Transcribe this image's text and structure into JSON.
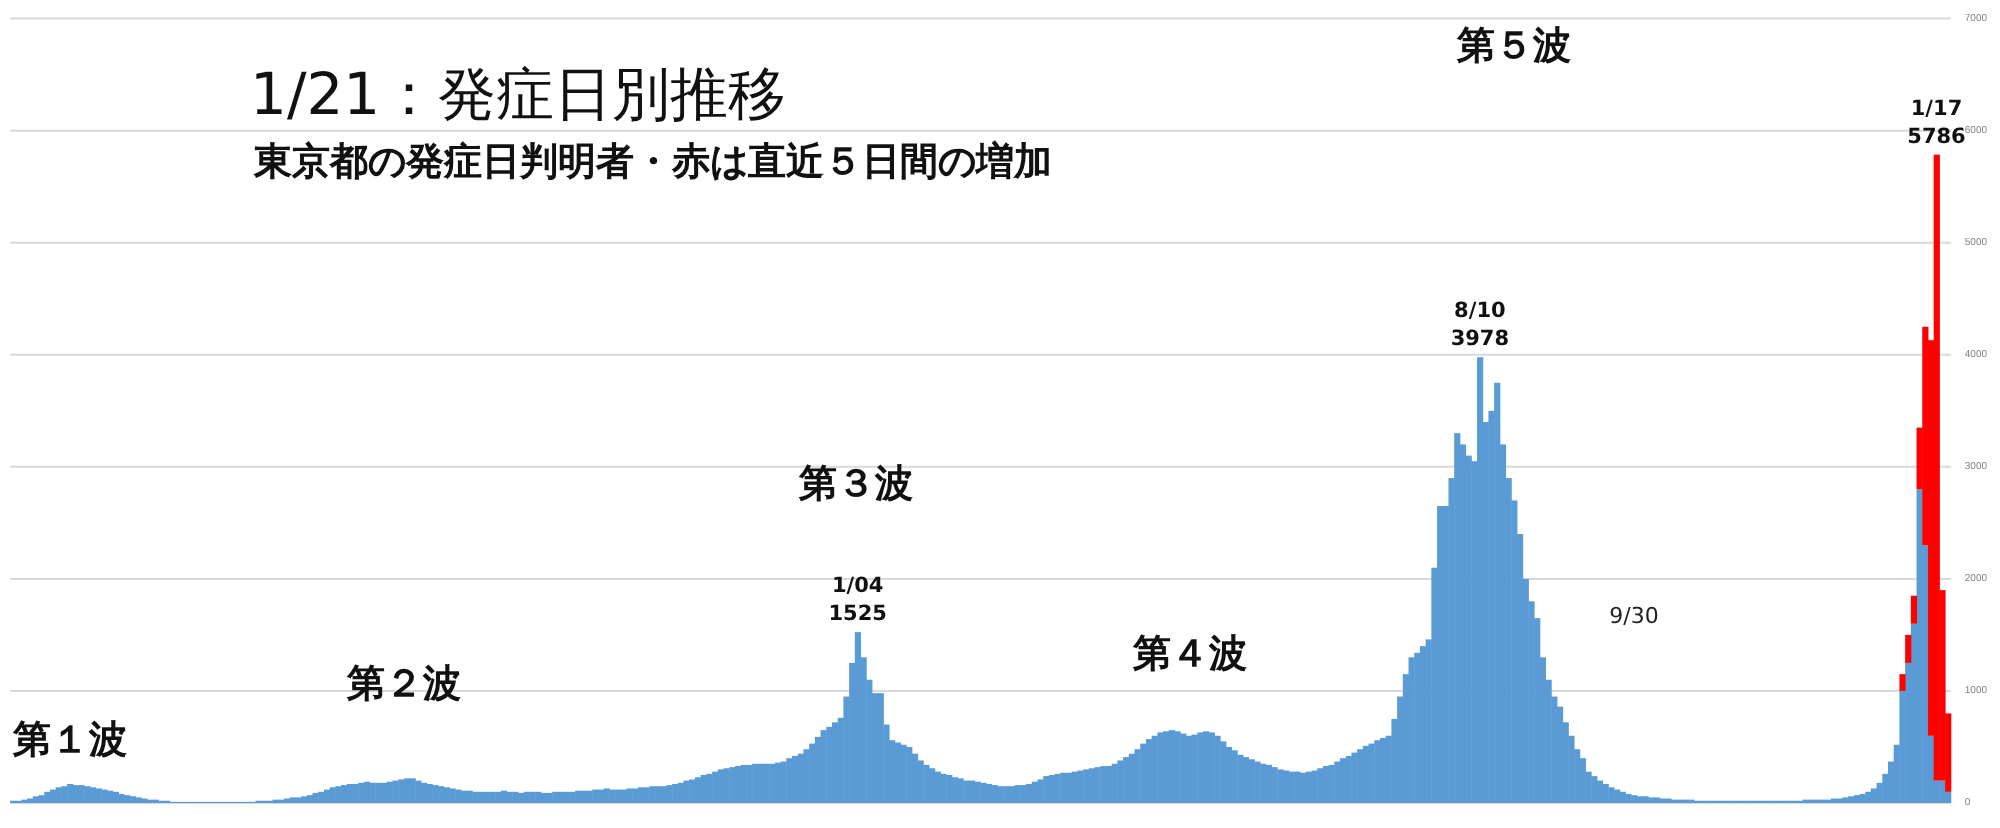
{
  "chart_data": {
    "type": "bar",
    "title": "1/21：発症日別推移",
    "subtitle": "東京都の発症日判明者・赤は直近５日間の増加",
    "categories": [
      null,
      null,
      null,
      null,
      null,
      null,
      null,
      null,
      null,
      null,
      null,
      null,
      null,
      null,
      null,
      null,
      null,
      null,
      null,
      null,
      null,
      null,
      null,
      null,
      null,
      null,
      null,
      null,
      null,
      null,
      null,
      null,
      null,
      null,
      null,
      null,
      null,
      null,
      null,
      null,
      null,
      null,
      null,
      null,
      null,
      null,
      null,
      null,
      null,
      null,
      null,
      null,
      null,
      null,
      null,
      null,
      null,
      null,
      null,
      null,
      null,
      null,
      null,
      null,
      null,
      null,
      null,
      null,
      null,
      null,
      null,
      null,
      null,
      null,
      null,
      null,
      null,
      null,
      null,
      null,
      null,
      null,
      null,
      null,
      null,
      null,
      null,
      null,
      null,
      null,
      null,
      null,
      null,
      null,
      null,
      null,
      null,
      null,
      null,
      null,
      null,
      null,
      null,
      null,
      null,
      null,
      null,
      null,
      null,
      null,
      null,
      null,
      null,
      null,
      null,
      null,
      null,
      null,
      null,
      null,
      null,
      null,
      null,
      null,
      null,
      null,
      null,
      null,
      null,
      null,
      null,
      null,
      null,
      null,
      null,
      null,
      null,
      null,
      null,
      null,
      null,
      null,
      null,
      null,
      null,
      null,
      null,
      null,
      null,
      null,
      null,
      null,
      null,
      null,
      null,
      null,
      null,
      null,
      null,
      null,
      null,
      null,
      null,
      null,
      null,
      null,
      null,
      null,
      null,
      null,
      null,
      null,
      null,
      null,
      null,
      null,
      null,
      null,
      null,
      null,
      null,
      null,
      null,
      null,
      null,
      null,
      null,
      null,
      null,
      null,
      null,
      null,
      null,
      null,
      null,
      null,
      null,
      null,
      null,
      null,
      null,
      null,
      null,
      null,
      null,
      null,
      null,
      null,
      null,
      null,
      null,
      null,
      null,
      null,
      null,
      null,
      null,
      null,
      null,
      null,
      null,
      null,
      null,
      null,
      null,
      null,
      null,
      null,
      null,
      null,
      null,
      null,
      null,
      null,
      null,
      null,
      null,
      null,
      null,
      null,
      null,
      null,
      null,
      null,
      null,
      null,
      null,
      null,
      null,
      null,
      null,
      null,
      null,
      null,
      null,
      null,
      null,
      null,
      null,
      null,
      null,
      null,
      null,
      null,
      null,
      null,
      null,
      null,
      null,
      null,
      null,
      null,
      null,
      null,
      null,
      null,
      null,
      null,
      null,
      null,
      null,
      null,
      null,
      null,
      null,
      null,
      null,
      null,
      null,
      null,
      null,
      null,
      null,
      null,
      null,
      null,
      null,
      null,
      null,
      null,
      null,
      null,
      null,
      null,
      null,
      null,
      null,
      null,
      null,
      null,
      null,
      null,
      null,
      null,
      null,
      null,
      null,
      null,
      null,
      null,
      null,
      null,
      null,
      null,
      null,
      null,
      null,
      null,
      null,
      null,
      null,
      null,
      null,
      null,
      null,
      null,
      null,
      null,
      null,
      null
    ],
    "ylim": [
      0,
      7000
    ],
    "yticks": [
      0,
      1000,
      2000,
      3000,
      4000,
      5000,
      6000,
      7000
    ],
    "grid": "y",
    "tick_labels": "y",
    "stacked": true,
    "series": [
      {
        "color": "#5b9bd5",
        "values": [
          20,
          20,
          30,
          40,
          60,
          70,
          100,
          120,
          140,
          150,
          170,
          160,
          160,
          150,
          140,
          130,
          120,
          110,
          100,
          80,
          70,
          60,
          50,
          40,
          30,
          30,
          20,
          20,
          10,
          10,
          10,
          10,
          10,
          10,
          10,
          10,
          10,
          10,
          10,
          10,
          10,
          10,
          10,
          20,
          20,
          20,
          30,
          30,
          40,
          50,
          50,
          60,
          70,
          90,
          100,
          120,
          140,
          150,
          160,
          170,
          170,
          180,
          190,
          180,
          180,
          180,
          190,
          200,
          210,
          220,
          220,
          200,
          180,
          170,
          160,
          150,
          140,
          130,
          120,
          110,
          110,
          100,
          100,
          100,
          100,
          100,
          110,
          100,
          100,
          90,
          100,
          100,
          100,
          90,
          90,
          100,
          100,
          100,
          100,
          110,
          110,
          110,
          120,
          120,
          130,
          120,
          120,
          120,
          130,
          130,
          140,
          140,
          150,
          150,
          150,
          160,
          170,
          180,
          200,
          210,
          230,
          250,
          260,
          280,
          300,
          310,
          320,
          330,
          340,
          340,
          350,
          350,
          350,
          350,
          360,
          370,
          400,
          420,
          440,
          480,
          530,
          590,
          650,
          680,
          720,
          760,
          950,
          1250,
          1525,
          1300,
          1100,
          980,
          980,
          700,
          560,
          540,
          520,
          500,
          440,
          380,
          340,
          310,
          280,
          260,
          250,
          230,
          220,
          200,
          200,
          190,
          180,
          170,
          160,
          150,
          150,
          150,
          160,
          160,
          170,
          190,
          210,
          240,
          250,
          260,
          270,
          270,
          280,
          290,
          300,
          310,
          320,
          330,
          330,
          350,
          380,
          410,
          440,
          480,
          530,
          570,
          600,
          630,
          640,
          650,
          640,
          620,
          600,
          610,
          630,
          640,
          630,
          600,
          550,
          500,
          470,
          430,
          410,
          390,
          370,
          350,
          340,
          320,
          300,
          290,
          280,
          280,
          270,
          280,
          290,
          310,
          330,
          340,
          370,
          400,
          420,
          450,
          480,
          510,
          530,
          560,
          580,
          600,
          750,
          950,
          1150,
          1300,
          1340,
          1400,
          1460,
          2100,
          2650,
          2650,
          2900,
          3300,
          3200,
          3100,
          3050,
          3978,
          3400,
          3500,
          3750,
          3200,
          2900,
          2700,
          2400,
          2000,
          1800,
          1650,
          1300,
          1100,
          950,
          860,
          720,
          600,
          480,
          400,
          280,
          240,
          200,
          170,
          140,
          120,
          100,
          80,
          70,
          60,
          60,
          50,
          50,
          40,
          40,
          30,
          30,
          30,
          30,
          20,
          20,
          20,
          20,
          20,
          20,
          20,
          20,
          20,
          20,
          20,
          20,
          20,
          20,
          20,
          20,
          20,
          20,
          20,
          30,
          30,
          30,
          30,
          30,
          40,
          40,
          50,
          60,
          70,
          80,
          100,
          130,
          180,
          260,
          370,
          520,
          1000,
          1250,
          1600,
          2800,
          2300,
          600,
          200,
          200,
          100
        ]
      },
      {
        "color": "#ff0000",
        "values": [
          null,
          null,
          null,
          null,
          null,
          null,
          null,
          null,
          null,
          null,
          null,
          null,
          null,
          null,
          null,
          null,
          null,
          null,
          null,
          null,
          null,
          null,
          null,
          null,
          null,
          null,
          null,
          null,
          null,
          null,
          null,
          null,
          null,
          null,
          null,
          null,
          null,
          null,
          null,
          null,
          null,
          null,
          null,
          null,
          null,
          null,
          null,
          null,
          null,
          null,
          null,
          null,
          null,
          null,
          null,
          null,
          null,
          null,
          null,
          null,
          null,
          null,
          null,
          null,
          null,
          null,
          null,
          null,
          null,
          null,
          null,
          null,
          null,
          null,
          null,
          null,
          null,
          null,
          null,
          null,
          null,
          null,
          null,
          null,
          null,
          null,
          null,
          null,
          null,
          null,
          null,
          null,
          null,
          null,
          null,
          null,
          null,
          null,
          null,
          null,
          null,
          null,
          null,
          null,
          null,
          null,
          null,
          null,
          null,
          null,
          null,
          null,
          null,
          null,
          null,
          null,
          null,
          null,
          null,
          null,
          null,
          null,
          null,
          null,
          null,
          null,
          null,
          null,
          null,
          null,
          null,
          null,
          null,
          null,
          null,
          null,
          null,
          null,
          null,
          null,
          null,
          null,
          null,
          null,
          null,
          null,
          null,
          null,
          null,
          null,
          null,
          null,
          null,
          null,
          null,
          null,
          null,
          null,
          null,
          null,
          null,
          null,
          null,
          null,
          null,
          null,
          null,
          null,
          null,
          null,
          null,
          null,
          null,
          null,
          null,
          null,
          null,
          null,
          null,
          null,
          null,
          null,
          null,
          null,
          null,
          null,
          null,
          null,
          null,
          null,
          null,
          null,
          null,
          null,
          null,
          null,
          null,
          null,
          null,
          null,
          null,
          null,
          null,
          null,
          null,
          null,
          null,
          null,
          null,
          null,
          null,
          null,
          null,
          null,
          null,
          null,
          null,
          null,
          null,
          null,
          null,
          null,
          null,
          null,
          null,
          null,
          null,
          null,
          null,
          null,
          null,
          null,
          null,
          null,
          null,
          null,
          null,
          null,
          null,
          null,
          null,
          null,
          null,
          null,
          null,
          null,
          null,
          null,
          null,
          null,
          null,
          null,
          null,
          null,
          null,
          null,
          null,
          null,
          null,
          null,
          null,
          null,
          null,
          null,
          null,
          null,
          null,
          null,
          null,
          null,
          null,
          null,
          null,
          null,
          null,
          null,
          null,
          null,
          null,
          null,
          null,
          null,
          null,
          null,
          null,
          null,
          null,
          null,
          null,
          null,
          null,
          null,
          null,
          null,
          null,
          null,
          null,
          null,
          null,
          null,
          null,
          null,
          null,
          null,
          null,
          null,
          null,
          null,
          null,
          null,
          null,
          null,
          null,
          null,
          null,
          null,
          null,
          null,
          null,
          null,
          null,
          null,
          null,
          null,
          null,
          null,
          null,
          null,
          null,
          null,
          null,
          150,
          250,
          250,
          550,
          1950,
          3530,
          5586,
          1700,
          700
        ]
      }
    ],
    "totals": [
      null,
      null,
      null,
      null,
      null,
      null,
      null,
      null,
      null,
      null,
      null,
      null,
      null,
      null,
      null,
      null,
      null,
      null,
      null,
      null,
      null,
      null,
      null,
      null,
      null,
      null,
      null,
      null,
      null,
      null,
      null,
      null,
      null,
      null,
      null,
      null,
      null,
      null,
      null,
      null,
      null,
      null,
      null,
      null,
      null,
      null,
      null,
      null,
      null,
      null,
      null,
      null,
      null,
      null,
      null,
      null,
      null,
      null,
      null,
      null,
      null,
      null,
      null,
      null,
      null,
      null,
      null,
      null,
      null,
      null,
      null,
      null,
      null,
      null,
      null,
      null,
      null,
      null,
      null,
      null,
      null,
      null,
      null,
      null,
      null,
      null,
      null,
      null,
      null,
      null,
      null,
      null,
      null,
      null,
      null,
      null,
      null,
      null,
      null,
      null,
      null,
      null,
      null,
      null,
      null,
      null,
      null,
      null,
      null,
      null,
      null,
      null,
      null,
      null,
      null,
      null,
      null,
      null,
      null,
      null,
      null,
      null,
      null,
      null,
      null,
      null,
      null,
      null,
      null,
      null,
      null,
      null,
      null,
      null,
      null,
      null,
      null,
      null,
      null,
      null,
      null,
      null,
      null,
      null,
      null,
      null,
      null,
      null,
      "1525",
      null,
      null,
      null,
      null,
      null,
      null,
      null,
      null,
      null,
      null,
      null,
      null,
      null,
      null,
      null,
      null,
      null,
      null,
      null,
      null,
      null,
      null,
      null,
      null,
      null,
      null,
      null,
      null,
      null,
      null,
      null,
      null,
      null,
      null,
      null,
      null,
      null,
      null,
      null,
      null,
      null,
      null,
      null,
      null,
      null,
      null,
      null,
      null,
      null,
      null,
      null,
      null,
      null,
      null,
      null,
      null,
      null,
      null,
      null,
      null,
      null,
      null,
      null,
      null,
      null,
      null,
      null,
      null,
      null,
      null,
      null,
      null,
      null,
      null,
      null,
      null,
      null,
      null,
      null,
      null,
      null,
      null,
      null,
      null,
      null,
      null,
      null,
      null,
      null,
      null,
      null,
      null,
      null,
      null,
      null,
      null,
      null,
      null,
      null,
      null,
      null,
      null,
      null,
      null,
      null,
      null,
      null,
      null,
      "3978",
      null,
      null,
      null,
      null,
      null,
      null,
      null,
      null,
      null,
      null,
      null,
      null,
      null,
      null,
      null,
      null,
      null,
      null,
      null,
      null,
      null,
      null,
      null,
      null,
      null,
      null,
      null,
      null,
      null,
      null,
      null,
      null,
      null,
      null,
      null,
      null,
      null,
      null,
      null,
      null,
      null,
      null,
      null,
      null,
      null,
      null,
      null,
      null,
      null,
      null,
      null,
      null,
      null,
      null,
      null,
      null,
      null,
      null,
      null,
      null,
      null,
      null,
      null,
      null,
      null,
      null,
      null,
      null,
      null,
      null,
      null,
      null,
      null,
      null,
      null,
      null,
      null,
      null,
      null,
      "5786",
      null,
      null
    ],
    "annotations": [
      "第１波",
      "第２波",
      "第３波",
      "第４波",
      "第５波",
      "9/30",
      "1/04",
      "8/10",
      "1/17"
    ]
  }
}
